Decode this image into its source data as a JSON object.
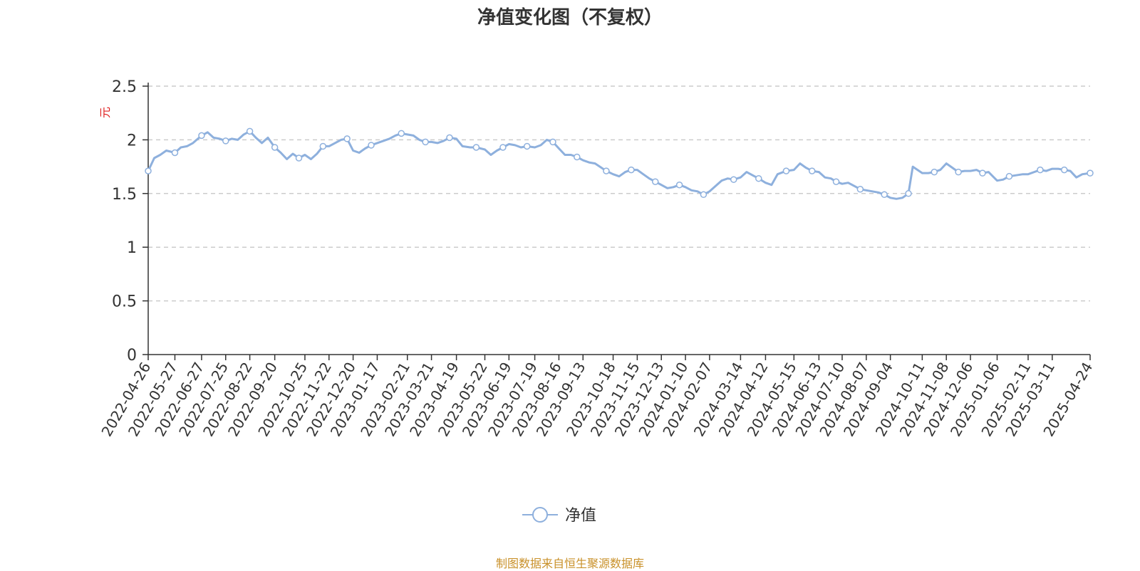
{
  "chart_data": {
    "type": "line",
    "title": "净值变化图（不复权）",
    "ylabel": "元",
    "ylim": [
      0,
      2.5
    ],
    "yticks": [
      0,
      0.5,
      1,
      1.5,
      2,
      2.5
    ],
    "grid": true,
    "legend_position": "bottom-center",
    "x_tick_labels": [
      "2022-04-26",
      "2022-05-27",
      "2022-06-27",
      "2022-07-25",
      "2022-08-22",
      "2022-09-20",
      "2022-10-25",
      "2022-11-22",
      "2022-12-20",
      "2023-01-17",
      "2023-02-21",
      "2023-03-21",
      "2023-04-19",
      "2023-05-22",
      "2023-06-19",
      "2023-07-19",
      "2023-08-16",
      "2023-09-13",
      "2023-10-18",
      "2023-11-15",
      "2023-12-13",
      "2024-01-10",
      "2024-02-07",
      "2024-03-14",
      "2024-04-12",
      "2024-05-15",
      "2024-06-13",
      "2024-07-10",
      "2024-08-07",
      "2024-09-04",
      "2024-10-11",
      "2024-11-08",
      "2024-12-06",
      "2025-01-06",
      "2025-02-11",
      "2025-03-11",
      "2025-04-24"
    ],
    "series": [
      {
        "name": "净值",
        "color": "#8eb0dd",
        "x": [
          "2022-04-26",
          "2022-05-03",
          "2022-05-10",
          "2022-05-17",
          "2022-05-27",
          "2022-06-03",
          "2022-06-10",
          "2022-06-17",
          "2022-06-27",
          "2022-07-04",
          "2022-07-11",
          "2022-07-18",
          "2022-07-25",
          "2022-08-01",
          "2022-08-08",
          "2022-08-15",
          "2022-08-22",
          "2022-08-29",
          "2022-09-05",
          "2022-09-12",
          "2022-09-20",
          "2022-09-27",
          "2022-10-04",
          "2022-10-11",
          "2022-10-18",
          "2022-10-25",
          "2022-11-01",
          "2022-11-08",
          "2022-11-15",
          "2022-11-22",
          "2022-11-29",
          "2022-12-06",
          "2022-12-13",
          "2022-12-20",
          "2022-12-27",
          "2023-01-03",
          "2023-01-10",
          "2023-01-17",
          "2023-01-31",
          "2023-02-07",
          "2023-02-14",
          "2023-02-21",
          "2023-02-28",
          "2023-03-07",
          "2023-03-14",
          "2023-03-21",
          "2023-03-28",
          "2023-04-04",
          "2023-04-11",
          "2023-04-19",
          "2023-04-26",
          "2023-05-05",
          "2023-05-12",
          "2023-05-22",
          "2023-05-29",
          "2023-06-05",
          "2023-06-12",
          "2023-06-19",
          "2023-06-26",
          "2023-07-03",
          "2023-07-10",
          "2023-07-19",
          "2023-07-26",
          "2023-08-02",
          "2023-08-09",
          "2023-08-16",
          "2023-08-23",
          "2023-08-30",
          "2023-09-06",
          "2023-09-13",
          "2023-09-20",
          "2023-09-27",
          "2023-10-10",
          "2023-10-18",
          "2023-10-25",
          "2023-11-01",
          "2023-11-08",
          "2023-11-15",
          "2023-11-22",
          "2023-11-29",
          "2023-12-06",
          "2023-12-13",
          "2023-12-20",
          "2023-12-27",
          "2024-01-03",
          "2024-01-10",
          "2024-01-17",
          "2024-01-24",
          "2024-01-31",
          "2024-02-07",
          "2024-02-21",
          "2024-02-28",
          "2024-03-06",
          "2024-03-14",
          "2024-03-21",
          "2024-03-28",
          "2024-04-04",
          "2024-04-12",
          "2024-04-19",
          "2024-04-26",
          "2024-05-06",
          "2024-05-15",
          "2024-05-22",
          "2024-05-29",
          "2024-06-05",
          "2024-06-13",
          "2024-06-20",
          "2024-06-27",
          "2024-07-03",
          "2024-07-10",
          "2024-07-17",
          "2024-07-24",
          "2024-07-31",
          "2024-08-07",
          "2024-08-14",
          "2024-08-21",
          "2024-08-28",
          "2024-09-04",
          "2024-09-11",
          "2024-09-18",
          "2024-09-25",
          "2024-09-30",
          "2024-10-11",
          "2024-10-18",
          "2024-10-25",
          "2024-11-01",
          "2024-11-08",
          "2024-11-15",
          "2024-11-22",
          "2024-11-29",
          "2024-12-06",
          "2024-12-13",
          "2024-12-20",
          "2024-12-27",
          "2025-01-06",
          "2025-01-13",
          "2025-01-20",
          "2025-02-05",
          "2025-02-11",
          "2025-02-18",
          "2025-02-25",
          "2025-03-04",
          "2025-03-11",
          "2025-03-18",
          "2025-03-25",
          "2025-04-01",
          "2025-04-08",
          "2025-04-15",
          "2025-04-24"
        ],
        "values": [
          1.71,
          1.83,
          1.86,
          1.9,
          1.88,
          1.93,
          1.94,
          1.97,
          2.04,
          2.07,
          2.02,
          2.01,
          1.99,
          2.01,
          2.0,
          2.05,
          2.08,
          2.02,
          1.97,
          2.02,
          1.93,
          1.88,
          1.82,
          1.87,
          1.83,
          1.86,
          1.82,
          1.87,
          1.94,
          1.94,
          1.97,
          2.0,
          2.01,
          1.9,
          1.88,
          1.92,
          1.95,
          1.97,
          2.01,
          2.04,
          2.06,
          2.05,
          2.04,
          2.0,
          1.98,
          1.98,
          1.97,
          1.99,
          2.02,
          2.01,
          1.94,
          1.93,
          1.93,
          1.91,
          1.86,
          1.9,
          1.93,
          1.96,
          1.95,
          1.93,
          1.94,
          1.93,
          1.95,
          2.0,
          1.98,
          1.92,
          1.86,
          1.86,
          1.84,
          1.81,
          1.79,
          1.78,
          1.71,
          1.68,
          1.66,
          1.7,
          1.72,
          1.72,
          1.68,
          1.64,
          1.61,
          1.58,
          1.55,
          1.56,
          1.58,
          1.56,
          1.53,
          1.52,
          1.49,
          1.52,
          1.62,
          1.64,
          1.63,
          1.65,
          1.7,
          1.67,
          1.64,
          1.6,
          1.58,
          1.68,
          1.71,
          1.72,
          1.78,
          1.74,
          1.71,
          1.7,
          1.65,
          1.64,
          1.61,
          1.59,
          1.6,
          1.57,
          1.54,
          1.53,
          1.52,
          1.51,
          1.49,
          1.46,
          1.45,
          1.46,
          1.5,
          1.75,
          1.69,
          1.69,
          1.7,
          1.72,
          1.78,
          1.74,
          1.7,
          1.71,
          1.71,
          1.72,
          1.69,
          1.7,
          1.62,
          1.63,
          1.66,
          1.68,
          1.68,
          1.7,
          1.72,
          1.71,
          1.73,
          1.73,
          1.72,
          1.71,
          1.65,
          1.68,
          1.69
        ]
      }
    ]
  },
  "legend": {
    "label": "净值"
  },
  "source_note": "制图数据来自恒生聚源数据库"
}
